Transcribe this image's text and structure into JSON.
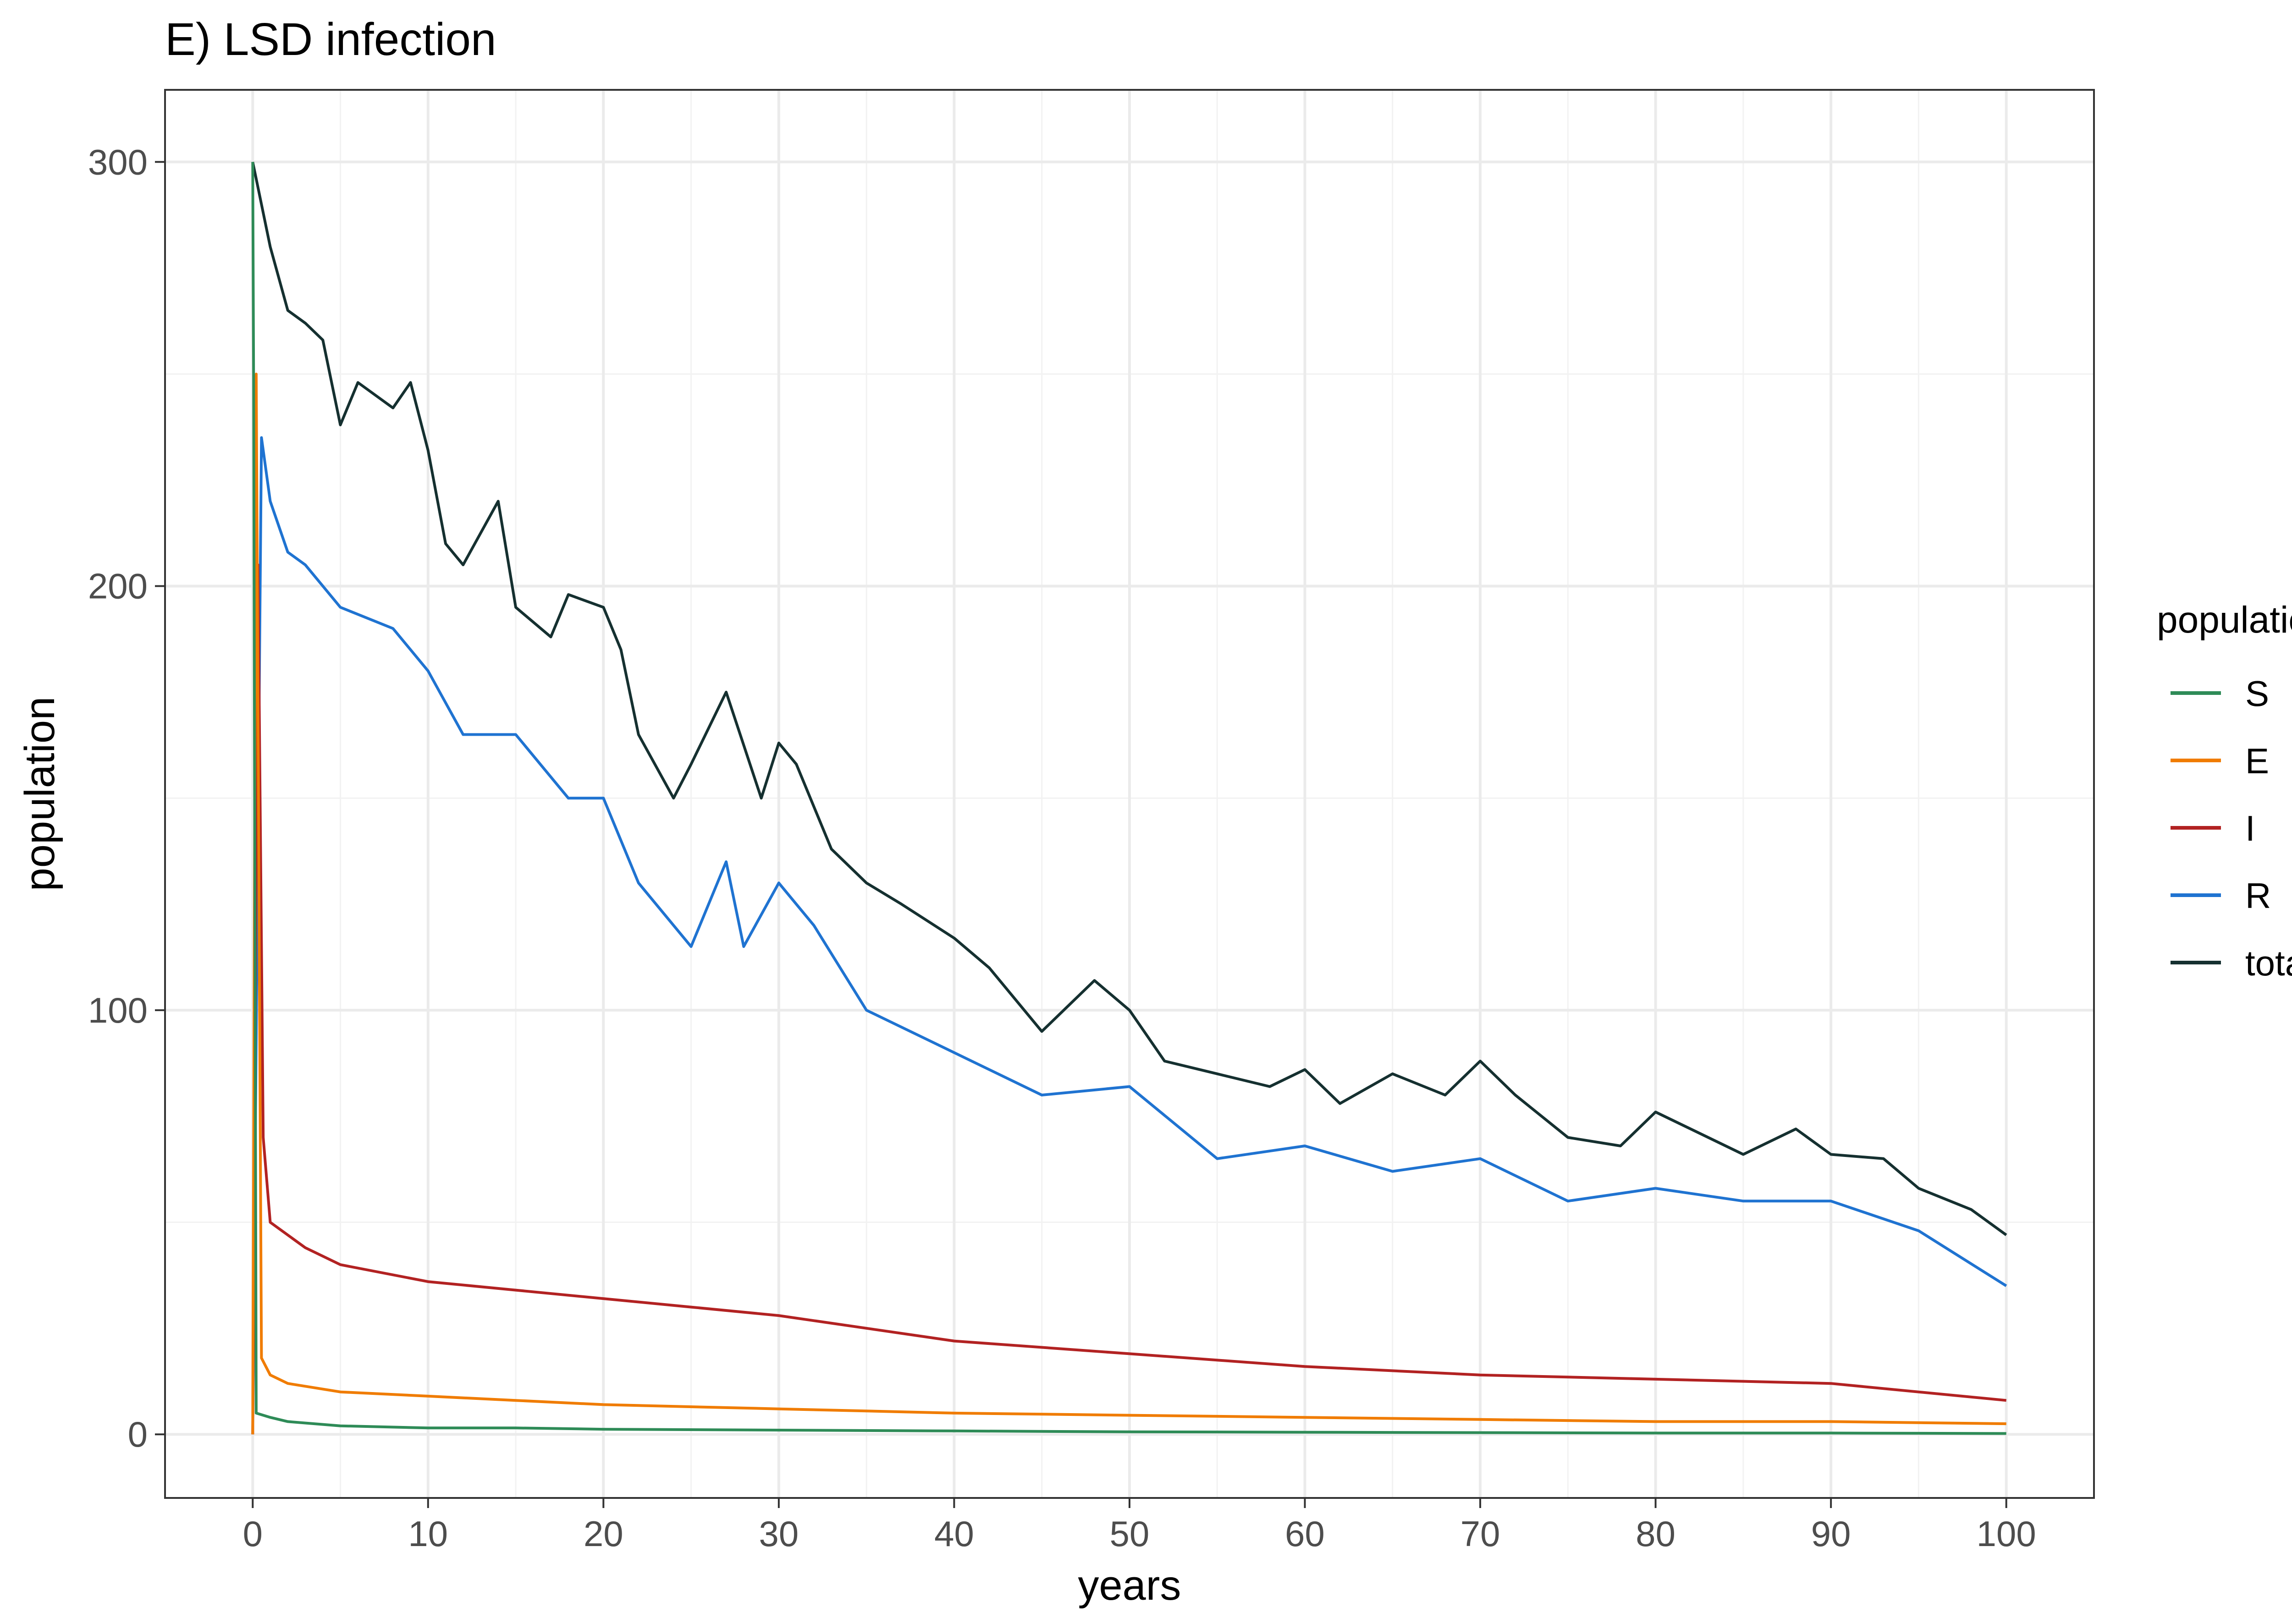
{
  "chart_data": {
    "type": "line",
    "title": "E) LSD infection",
    "xlabel": "years",
    "ylabel": "population",
    "xlim": [
      -5,
      105
    ],
    "ylim": [
      -15,
      317
    ],
    "xticks": [
      0,
      10,
      20,
      30,
      40,
      50,
      60,
      70,
      80,
      90,
      100
    ],
    "yticks": [
      0,
      100,
      200,
      300
    ],
    "grid": true,
    "legend": {
      "title": "population",
      "position": "right"
    },
    "series": [
      {
        "name": "S",
        "color": "#2e8b57",
        "x": [
          0,
          0.05,
          0.2,
          1,
          2,
          5,
          10,
          15,
          20,
          30,
          40,
          50,
          60,
          70,
          80,
          90,
          100
        ],
        "y": [
          300,
          250,
          5,
          4,
          3,
          2,
          1.5,
          1.5,
          1.2,
          1,
          0.8,
          0.6,
          0.5,
          0.4,
          0.3,
          0.3,
          0.2
        ]
      },
      {
        "name": "E",
        "color": "#f07c00",
        "x": [
          0,
          0.2,
          0.5,
          1,
          2,
          5,
          10,
          15,
          20,
          30,
          40,
          50,
          60,
          70,
          80,
          90,
          100
        ],
        "y": [
          0,
          250,
          18,
          14,
          12,
          10,
          9,
          8,
          7,
          6,
          5,
          4.5,
          4,
          3.5,
          3,
          3,
          2.5
        ]
      },
      {
        "name": "I",
        "color": "#b22222",
        "x": [
          0,
          0.3,
          0.6,
          1,
          3,
          5,
          10,
          15,
          20,
          25,
          30,
          40,
          50,
          60,
          70,
          80,
          90,
          100
        ],
        "y": [
          0,
          205,
          70,
          50,
          44,
          40,
          36,
          34,
          32,
          30,
          28,
          22,
          19,
          16,
          14,
          13,
          12,
          8
        ]
      },
      {
        "name": "R",
        "color": "#1f73d1",
        "x": [
          0,
          0.5,
          1,
          2,
          3,
          5,
          8,
          10,
          12,
          15,
          18,
          20,
          22,
          25,
          27,
          28,
          30,
          32,
          35,
          40,
          45,
          50,
          55,
          60,
          65,
          70,
          75,
          80,
          85,
          90,
          95,
          100
        ],
        "y": [
          0,
          235,
          220,
          208,
          205,
          195,
          190,
          180,
          165,
          165,
          150,
          150,
          130,
          115,
          135,
          115,
          130,
          120,
          100,
          90,
          80,
          82,
          65,
          68,
          62,
          65,
          55,
          58,
          55,
          55,
          48,
          35
        ]
      },
      {
        "name": "total",
        "color": "#153030",
        "x": [
          0,
          0.5,
          1,
          2,
          3,
          4,
          5,
          6,
          8,
          9,
          10,
          11,
          12,
          14,
          15,
          17,
          18,
          20,
          21,
          22,
          24,
          25,
          27,
          29,
          30,
          31,
          33,
          35,
          37,
          40,
          42,
          45,
          48,
          50,
          52,
          55,
          58,
          60,
          62,
          65,
          68,
          70,
          72,
          75,
          78,
          80,
          83,
          85,
          88,
          90,
          93,
          95,
          98,
          100
        ],
        "y": [
          300,
          290,
          280,
          265,
          262,
          258,
          238,
          248,
          242,
          248,
          232,
          210,
          205,
          220,
          195,
          188,
          198,
          195,
          185,
          165,
          150,
          158,
          175,
          150,
          163,
          158,
          138,
          130,
          125,
          117,
          110,
          95,
          107,
          100,
          88,
          85,
          82,
          86,
          78,
          85,
          80,
          88,
          80,
          70,
          68,
          76,
          70,
          66,
          72,
          66,
          65,
          58,
          53,
          47
        ]
      }
    ]
  }
}
